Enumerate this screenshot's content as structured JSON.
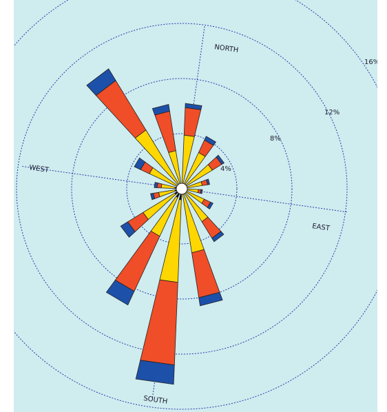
{
  "chart_data": {
    "type": "wind-rose",
    "direction_labels": {
      "north": "NORTH",
      "east": "EAST",
      "south": "SOUTH",
      "west": "WEST"
    },
    "ring_values": [
      4,
      8,
      12,
      16
    ],
    "ring_labels": [
      "4%",
      "8%",
      "12%",
      "16%"
    ],
    "band_colors": [
      "#000000",
      "#ffd700",
      "#f04e28",
      "#1d50a8"
    ],
    "petals": [
      {
        "dir": 360,
        "bands": [
          0.0,
          3.5,
          2.0,
          0.3
        ]
      },
      {
        "dir": 22.5,
        "bands": [
          0.0,
          2.5,
          1.0,
          0.3
        ]
      },
      {
        "dir": 45,
        "bands": [
          0.0,
          2.2,
          0.8,
          0.2
        ]
      },
      {
        "dir": 67.5,
        "bands": [
          0.0,
          1.1,
          0.4,
          0.15
        ]
      },
      {
        "dir": 90,
        "bands": [
          0.0,
          0.8,
          0.2,
          0.1
        ]
      },
      {
        "dir": 112.5,
        "bands": [
          0.0,
          1.4,
          0.5,
          0.2
        ]
      },
      {
        "dir": 135,
        "bands": [
          0.0,
          2.4,
          1.4,
          0.3
        ]
      },
      {
        "dir": 157.5,
        "bands": [
          0.0,
          4.3,
          3.3,
          0.6
        ]
      },
      {
        "dir": 180,
        "bands": [
          0.4,
          6.0,
          6.0,
          1.4
        ]
      },
      {
        "dir": 202.5,
        "bands": [
          0.3,
          3.1,
          4.4,
          1.1
        ]
      },
      {
        "dir": 225,
        "bands": [
          0.2,
          2.7,
          1.3,
          0.6
        ]
      },
      {
        "dir": 247.5,
        "bands": [
          0.1,
          1.2,
          0.4,
          0.2
        ]
      },
      {
        "dir": 270,
        "bands": [
          0.1,
          1.0,
          0.3,
          0.2
        ]
      },
      {
        "dir": 292.5,
        "bands": [
          0.0,
          2.2,
          0.7,
          0.5
        ]
      },
      {
        "dir": 315,
        "bands": [
          0.0,
          4.6,
          4.2,
          1.0
        ]
      },
      {
        "dir": 337.5,
        "bands": [
          0.0,
          2.4,
          2.9,
          0.5
        ]
      }
    ]
  }
}
